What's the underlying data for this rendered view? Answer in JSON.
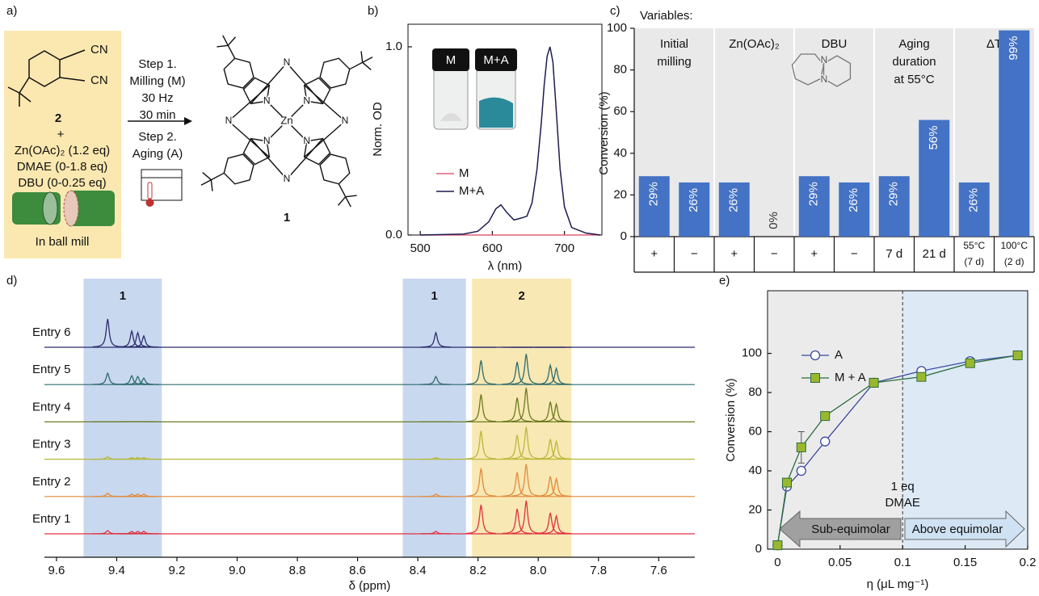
{
  "panel_labels": [
    "a)",
    "b)",
    "c)",
    "d)",
    "e)"
  ],
  "scheme": {
    "reactant": "2",
    "nitrile": "CN",
    "plus": "+",
    "reagents": [
      "Zn(OAc)₂ (1.2 eq)",
      "DMAE (0-1.8 eq)",
      "DBU (0-0.25 eq)"
    ],
    "mill": "In ball mill",
    "steps": [
      "Step 1.",
      "Milling (M)",
      "30 Hz",
      "30 min",
      "Step 2.",
      "Aging (A)"
    ],
    "product": "1",
    "metal": "Zn",
    "atom": "N"
  },
  "chart_data": [
    {
      "type": "line",
      "y_label": "Norm. OD",
      "x_label": "λ (nm)",
      "xlim": [
        483,
        752
      ],
      "ylim": [
        0,
        1.12
      ],
      "xticks": [
        500,
        600,
        700
      ],
      "yticks": [
        {
          "value": 0,
          "label": "0.0"
        },
        {
          "value": 1,
          "label": "1.0"
        }
      ],
      "x": [
        500,
        560,
        580,
        595,
        605,
        612,
        620,
        630,
        640,
        648,
        655,
        662,
        668,
        672,
        676,
        680,
        684,
        688,
        694,
        700,
        710,
        730,
        750
      ],
      "series": [
        {
          "name": "M",
          "color": "#e0607a",
          "values": [
            0,
            0,
            0,
            0,
            0,
            0,
            0,
            0,
            0,
            0,
            0,
            0,
            0,
            0,
            0,
            0,
            0,
            0,
            0,
            0,
            0,
            0,
            0
          ]
        },
        {
          "name": "M+A",
          "color": "#1c1c50",
          "values": [
            0,
            0.005,
            0.02,
            0.07,
            0.14,
            0.16,
            0.12,
            0.08,
            0.09,
            0.1,
            0.17,
            0.35,
            0.6,
            0.8,
            0.95,
            1.0,
            0.92,
            0.7,
            0.35,
            0.15,
            0.04,
            0.01,
            0
          ]
        }
      ],
      "legend": "center-right"
    },
    {
      "type": "bar",
      "title": "Variables:",
      "y_label": "Conversion (%)",
      "ylim": [
        0,
        100
      ],
      "yticks": [
        0,
        20,
        40,
        60,
        80,
        100
      ],
      "color": "#4472c4",
      "groups": [
        {
          "lines": [
            "Initial",
            "milling"
          ]
        },
        {
          "lines": [
            "Zn(OAc)₂"
          ]
        },
        {
          "lines": [
            "DBU"
          ]
        },
        {
          "lines": [
            "Aging",
            "duration",
            "at 55°C"
          ]
        },
        {
          "lines": [
            "ΔT"
          ]
        }
      ],
      "categories": [
        "+",
        "−",
        "+",
        "−",
        "+",
        "−",
        "7 d",
        "21 d",
        "55°C",
        "100°C"
      ],
      "category_notes": [
        null,
        null,
        null,
        null,
        null,
        null,
        null,
        null,
        "(7 d)",
        "(2 d)"
      ],
      "values": [
        29,
        26,
        26,
        0,
        29,
        26,
        29,
        56,
        26,
        99
      ],
      "value_labels": [
        "29%",
        "26%",
        "26%",
        "0%",
        "29%",
        "26%",
        "29%",
        "56%",
        "26%",
        "99%"
      ]
    },
    {
      "type": "spectra",
      "x_label": "δ (ppm)",
      "xlim": [
        9.64,
        7.48
      ],
      "xticks": [
        9.6,
        9.4,
        9.2,
        {
          "value": 9,
          "label": "9.0"
        },
        8.8,
        8.6,
        8.4,
        8.2,
        {
          "value": 8,
          "label": "8.0"
        },
        7.8,
        7.6
      ],
      "regions": [
        {
          "label": "1",
          "range": [
            9.51,
            9.25
          ],
          "color": "#c8d8ef"
        },
        {
          "label": "1",
          "range": [
            8.45,
            8.24
          ],
          "color": "#c8d8ef"
        },
        {
          "label": "2",
          "range": [
            8.22,
            7.89
          ],
          "color": "#f8e8b4"
        }
      ],
      "peaks": [
        9.43,
        9.35,
        9.33,
        9.31,
        8.34,
        8.19,
        8.07,
        8.04,
        7.96,
        7.94
      ],
      "series": [
        {
          "name": "Entry 6",
          "color": "#2b2b6b",
          "values": [
            35,
            20,
            18,
            14,
            18,
            0,
            0,
            0,
            0,
            0
          ]
        },
        {
          "name": "Entry 5",
          "color": "#2e6b6b",
          "values": [
            14,
            11,
            10,
            8,
            10,
            30,
            28,
            38,
            24,
            20
          ]
        },
        {
          "name": "Entry 4",
          "color": "#6b7a1e",
          "values": [
            0,
            0,
            0,
            0,
            0,
            34,
            30,
            42,
            25,
            22
          ]
        },
        {
          "name": "Entry 3",
          "color": "#b8b83a",
          "values": [
            3,
            2,
            2,
            2,
            2,
            35,
            30,
            40,
            25,
            22
          ]
        },
        {
          "name": "Entry 2",
          "color": "#e08a3a",
          "values": [
            4,
            3,
            3,
            3,
            3,
            35,
            30,
            40,
            25,
            22
          ]
        },
        {
          "name": "Entry 1",
          "color": "#e03040",
          "values": [
            4,
            3,
            3,
            3,
            3,
            36,
            31,
            41,
            26,
            22
          ]
        }
      ]
    },
    {
      "type": "scatter-line",
      "x_label": "η (μL mg⁻¹)",
      "y_label": "Conversion (%)",
      "xlim": [
        -0.008,
        0.2
      ],
      "ylim": [
        0,
        132
      ],
      "xticks": [
        0,
        0.05,
        0.1,
        0.15,
        0.2
      ],
      "yticks": [
        0,
        20,
        40,
        60,
        80,
        100
      ],
      "legend": "top-left",
      "series": [
        {
          "name": "A",
          "color": "#3a4aa0",
          "marker": "circle",
          "x": [
            0,
            0.0075,
            0.019,
            0.038,
            0.077,
            0.115,
            0.154,
            0.192
          ],
          "values": [
            2,
            32,
            40,
            55,
            85,
            91,
            96,
            99
          ]
        },
        {
          "name": "M + A",
          "color": "#2e6e3e",
          "marker_color": "#9ab82e",
          "marker": "square",
          "x": [
            0,
            0.0075,
            0.019,
            0.038,
            0.077,
            0.115,
            0.154,
            0.192
          ],
          "values": [
            2,
            34,
            52,
            68,
            85,
            88,
            95,
            99
          ],
          "errors": [
            0,
            2,
            8,
            1,
            0,
            0,
            0,
            0
          ]
        }
      ],
      "annotations": [
        {
          "x": 0.1,
          "lines": [
            "1 eq",
            "DMAE"
          ]
        }
      ],
      "arrows": [
        {
          "label": "Sub-equimolar"
        },
        {
          "label": "Above equimolar"
        }
      ]
    }
  ]
}
